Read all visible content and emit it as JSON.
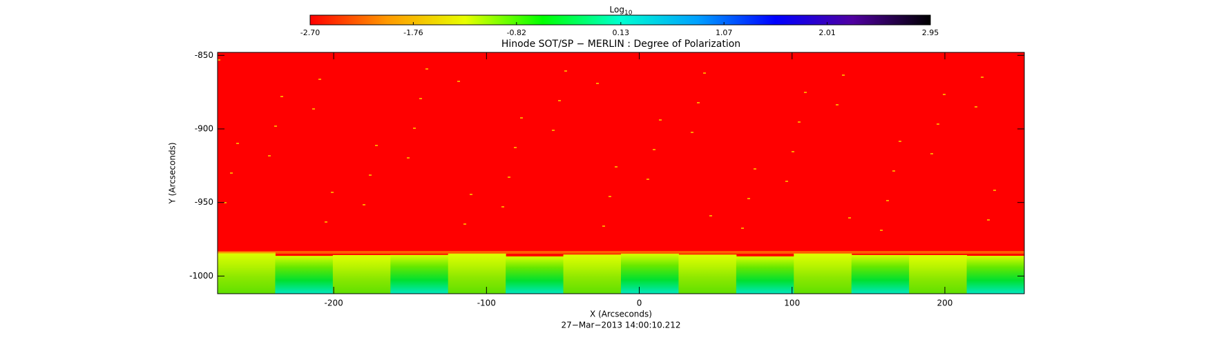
{
  "chart_data": {
    "type": "image",
    "title": "Hinode SOT/SP − MERLIN : Degree of Polarization",
    "x_label": "X (Arcseconds)",
    "y_label": "Y (Arcseconds)",
    "date_label": "27−Mar−2013 14:00:10.212",
    "xlim": [
      -276,
      252
    ],
    "ylim": [
      -1012,
      -848
    ],
    "xticks": [
      -200,
      -100,
      0,
      100,
      200
    ],
    "yticks": [
      -850,
      -900,
      -950,
      -1000
    ],
    "colorbar": {
      "label": "Log",
      "label_subscript": "10",
      "lim": [
        -2.7,
        2.95
      ],
      "ticks": [
        {
          "value": -2.7,
          "label": "-2.70"
        },
        {
          "value": -1.76,
          "label": "-1.76"
        },
        {
          "value": -0.82,
          "label": "-0.82"
        },
        {
          "value": 0.13,
          "label": "0.13"
        },
        {
          "value": 1.07,
          "label": "1.07"
        },
        {
          "value": 2.01,
          "label": "2.01"
        },
        {
          "value": 2.95,
          "label": "2.95"
        }
      ],
      "colors": [
        "#ff0000",
        "#ff9a00",
        "#e8ff00",
        "#00ff00",
        "#00ffd0",
        "#00a0ff",
        "#0000ff",
        "#5000a0",
        "#000000"
      ]
    }
  }
}
